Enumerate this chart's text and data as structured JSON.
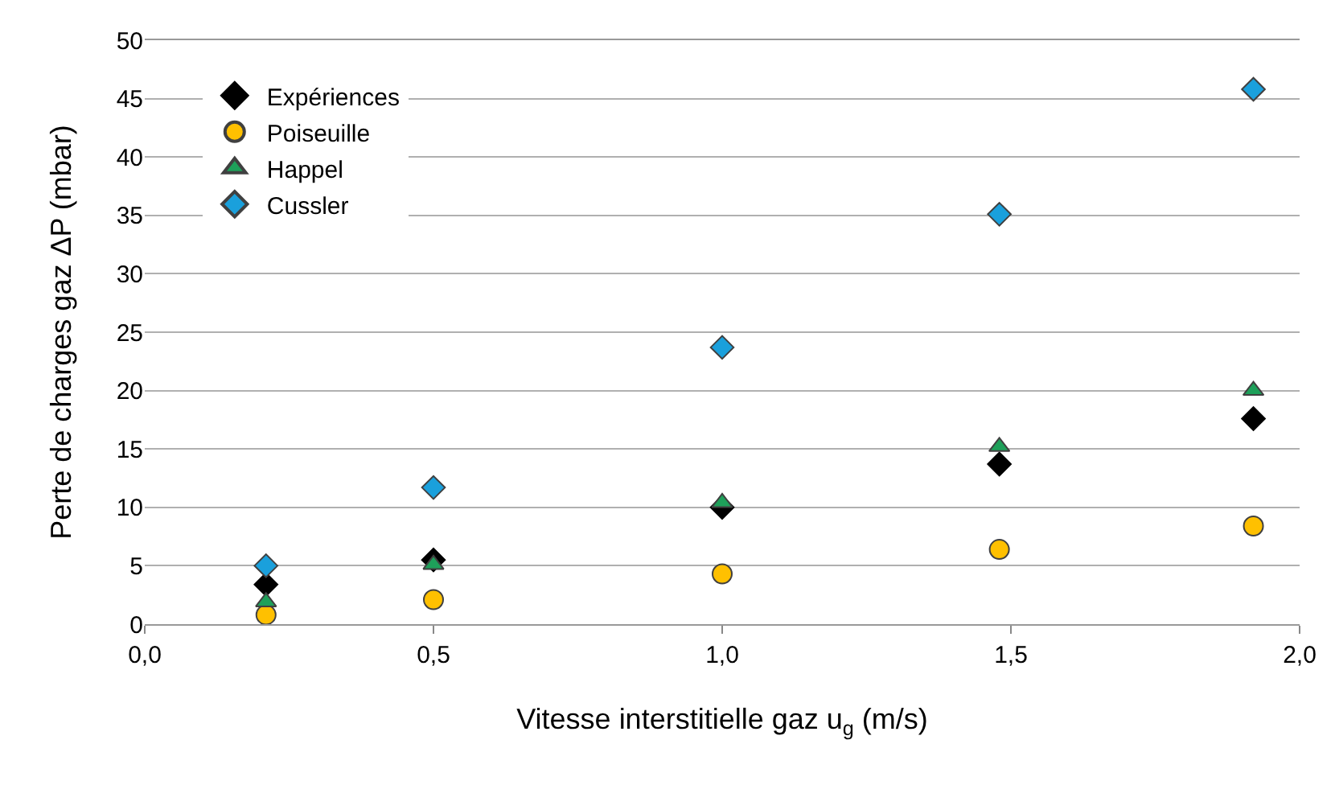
{
  "chart_data": {
    "type": "scatter",
    "xlabel": "Vitesse interstitielle gaz u$_{g}$ (m/s)",
    "ylabel": "Perte de charges gaz ΔP (mbar)",
    "x": [
      0.21,
      0.5,
      1.0,
      1.48,
      1.92
    ],
    "xlim": [
      0,
      2
    ],
    "xticks": [
      {
        "value": 0,
        "label": "0,0"
      },
      {
        "value": 0.5,
        "label": "0,5"
      },
      {
        "value": 1,
        "label": "1,0"
      },
      {
        "value": 1.5,
        "label": "1,5"
      },
      {
        "value": 2,
        "label": "2,0"
      }
    ],
    "ylim": [
      0,
      50
    ],
    "yticks": [
      0,
      5,
      10,
      15,
      20,
      25,
      30,
      35,
      40,
      45,
      50
    ],
    "grid": "y",
    "legend": "top left",
    "series": [
      {
        "name": "Expériences",
        "color": "#000000",
        "marker": "diamond",
        "values": [
          3.4,
          5.5,
          10.0,
          13.7,
          17.6
        ]
      },
      {
        "name": "Poiseuille",
        "color": "#ffc000",
        "marker": "circle",
        "values": [
          0.8,
          2.1,
          4.3,
          6.4,
          8.4
        ]
      },
      {
        "name": "Happel",
        "color": "#1ea05a",
        "marker": "triangle",
        "values": [
          1.9,
          5.1,
          10.4,
          15.2,
          20.0
        ]
      },
      {
        "name": "Cussler",
        "color": "#1aa0dc",
        "marker": "diamond",
        "values": [
          5.0,
          11.7,
          23.7,
          35.1,
          45.8
        ]
      }
    ]
  }
}
